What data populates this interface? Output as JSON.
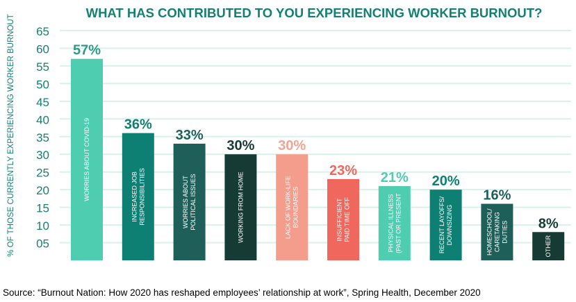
{
  "source": "Source: “Burnout Nation: How 2020 has reshaped employees’ relationship at work”, Spring Health, December 2020",
  "chart_data": {
    "type": "bar",
    "title": "WHAT HAS CONTRIBUTED TO YOU EXPERIENCING WORKER BURNOUT?",
    "xlabel": "",
    "ylabel": "% OF THOSE CURRENTLY EXPERIENCING WORKER BURNOUT",
    "ylim": [
      0,
      65
    ],
    "yticks": [
      65,
      60,
      55,
      50,
      45,
      40,
      35,
      30,
      25,
      20,
      15,
      10,
      5
    ],
    "ytick_labels": [
      "65",
      "60",
      "55",
      "50",
      "45",
      "40",
      "35",
      "30",
      "25",
      "20",
      "15",
      "10",
      "05"
    ],
    "grid": true,
    "gridline_color": "#d9f1ea",
    "title_color": "#148073",
    "categories": [
      "WORRIES ABOUT COVID-19",
      "INCREASED JOB RESPONSIBILITIES",
      "WORRIES ABOUT POLITICAL ISSUES",
      "WORKING FROM HOME",
      "LACK OF WORK-LIFE BOUNDARIES",
      "INSUFFICIENT PAID TIME OFF",
      "PHYSICAL ILLNESS (PAST OR PRESENT",
      "RECENT LAYOFFS/ DOWNSIZING",
      "HOMESCHOOL/ CARETAKING DUTIES",
      "OTHER"
    ],
    "category_lines": [
      [
        "WORRIES ABOUT COVID-19"
      ],
      [
        "INCREASED JOB",
        "RESPONSIBILITIES"
      ],
      [
        "WORRIES ABOUT",
        "POLITICAL ISSUES"
      ],
      [
        "WORKING FROM HOME"
      ],
      [
        "LACK OF WORK-LIFE",
        "BOUNDARIES"
      ],
      [
        "INSUFFICIENT",
        "PAID TIME OFF"
      ],
      [
        "PHYSICAL ILLNESS",
        "(PAST OR PRESENT"
      ],
      [
        "RECENT LAYOFFS/",
        "DOWNSIZING"
      ],
      [
        "HOMESCHOOL/",
        "CARETAKING",
        "DUTIES"
      ],
      [
        "OTHER"
      ]
    ],
    "values": [
      57,
      36,
      33,
      30,
      30,
      23,
      21,
      20,
      16,
      8
    ],
    "data_labels": [
      "57%",
      "36%",
      "33%",
      "30%",
      "30%",
      "23%",
      "21%",
      "20%",
      "16%",
      "8%"
    ],
    "bar_colors": [
      "#4ecdb0",
      "#0e8073",
      "#1f5f5a",
      "#163a34",
      "#f59d8d",
      "#f0685d",
      "#4ecdb0",
      "#0e8073",
      "#1f5f5a",
      "#163a34"
    ],
    "label_colors": [
      "#2f9a86",
      "#0e8073",
      "#1f5f5a",
      "#163a34",
      "#f4a393",
      "#f0685d",
      "#4ecdb0",
      "#0e8073",
      "#1f5f5a",
      "#163a34"
    ]
  }
}
